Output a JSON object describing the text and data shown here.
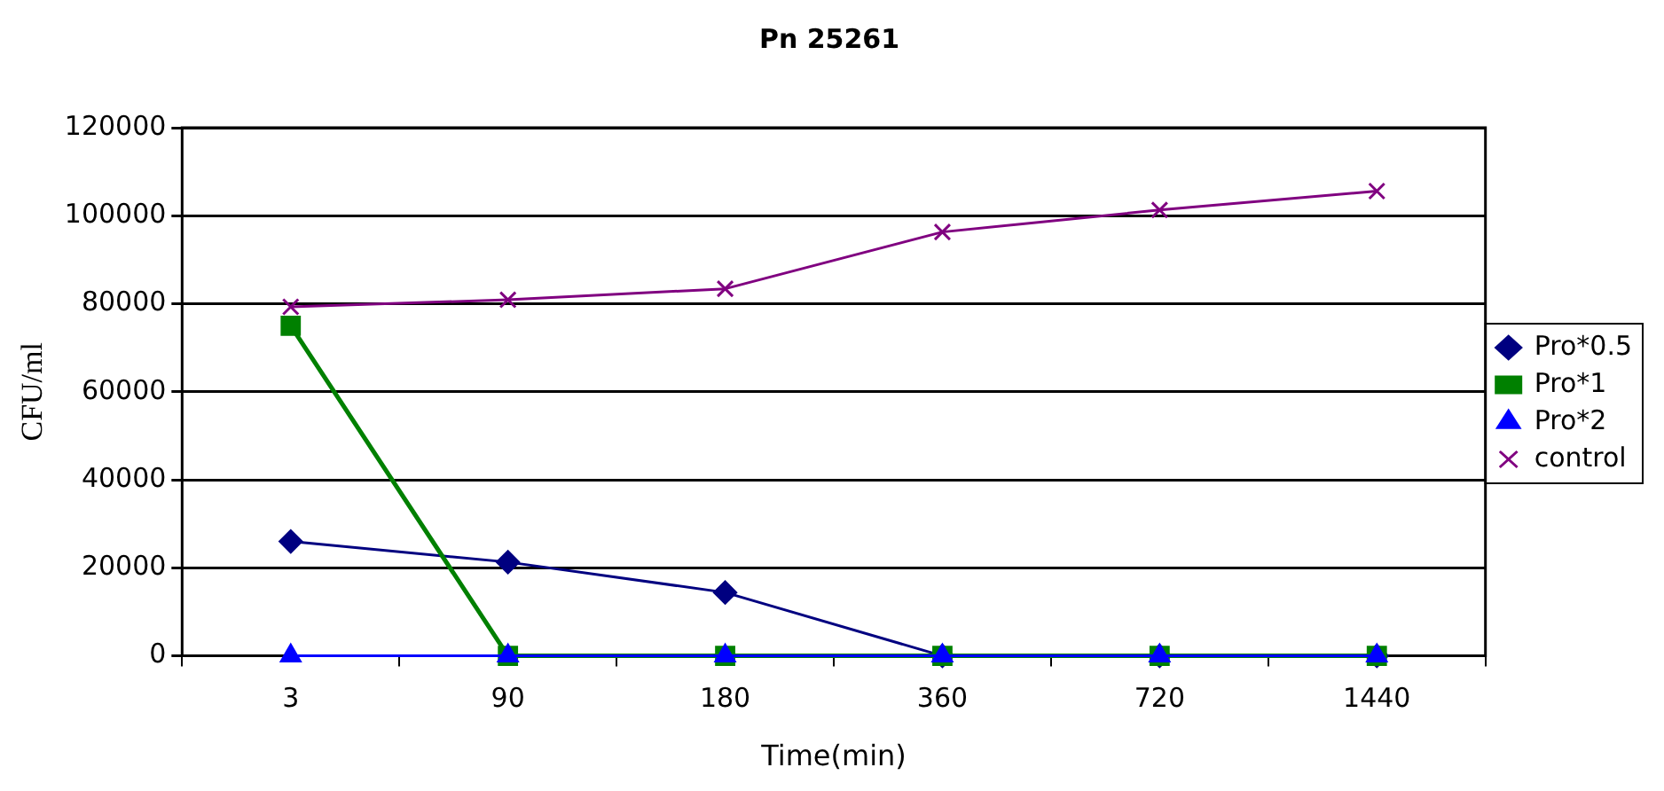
{
  "chart_data": {
    "type": "line",
    "title": "Pn 25261",
    "xlabel": "Time(min)",
    "ylabel": "CFU/ml",
    "categories": [
      "3",
      "90",
      "180",
      "360",
      "720",
      "1440"
    ],
    "series": [
      {
        "name": "Pro*0.5",
        "color": "#000080",
        "marker": "diamond",
        "values": [
          26000,
          21300,
          14400,
          0,
          0,
          0
        ]
      },
      {
        "name": "Pro*1",
        "color": "#008000",
        "marker": "square",
        "values": [
          75000,
          0,
          0,
          0,
          0,
          0
        ]
      },
      {
        "name": "Pro*2",
        "color": "#0000ff",
        "marker": "triangle",
        "values": [
          0,
          0,
          0,
          0,
          0,
          0
        ]
      },
      {
        "name": "control",
        "color": "#800080",
        "marker": "cross",
        "values": [
          79300,
          80900,
          83400,
          96300,
          101300,
          105600
        ]
      }
    ],
    "ylim": [
      0,
      120000
    ],
    "yticks": [
      0,
      20000,
      40000,
      60000,
      80000,
      100000,
      120000
    ],
    "grid": "y",
    "legend": "right"
  }
}
